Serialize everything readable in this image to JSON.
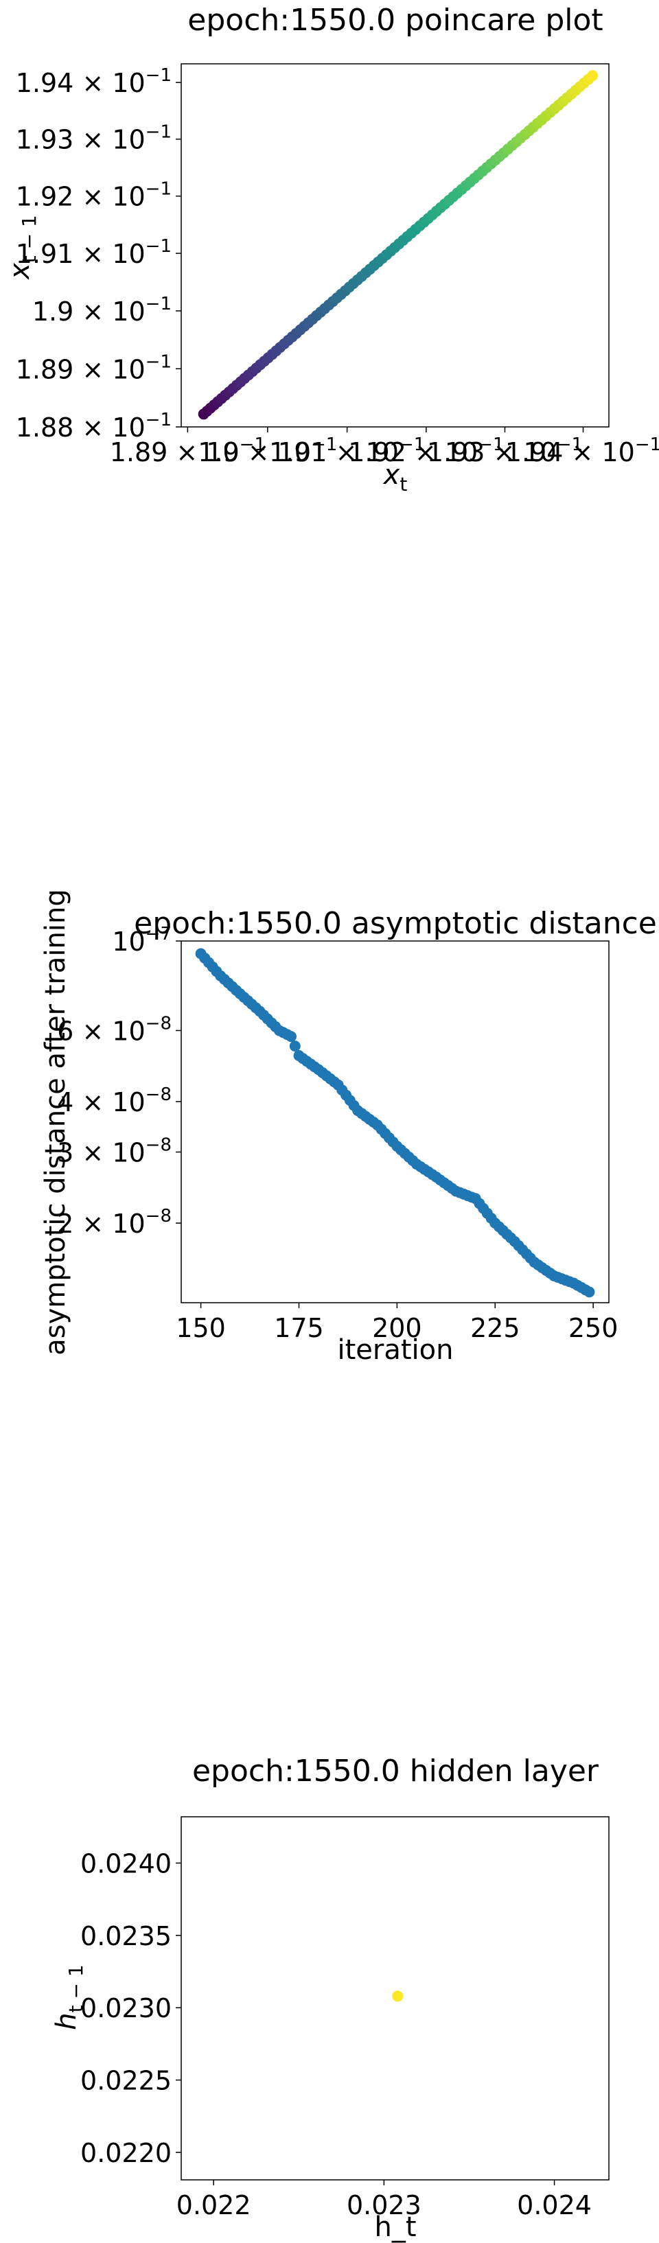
{
  "chart_data": [
    {
      "type": "scatter",
      "title": "epoch:1550.0 poincare plot",
      "xlabel": "x_t",
      "ylabel": "x_{t-1}",
      "scale": "log",
      "xlim": [
        0.18892,
        0.19433
      ],
      "ylim": [
        0.188,
        0.19433
      ],
      "x_ticks": [
        {
          "value": 0.189,
          "mant": "1.89",
          "base": "10",
          "exp": "−1"
        },
        {
          "value": 0.19,
          "mant": "1.9",
          "base": "10",
          "exp": "−1"
        },
        {
          "value": 0.191,
          "mant": "1.91",
          "base": "10",
          "exp": "−1"
        },
        {
          "value": 0.192,
          "mant": "1.92",
          "base": "10",
          "exp": "−1"
        },
        {
          "value": 0.193,
          "mant": "1.93",
          "base": "10",
          "exp": "−1"
        },
        {
          "value": 0.194,
          "mant": "1.94",
          "base": "10",
          "exp": "−1"
        }
      ],
      "y_ticks": [
        {
          "value": 0.188,
          "mant": "1.88",
          "base": "10",
          "exp": "−1"
        },
        {
          "value": 0.189,
          "mant": "1.89",
          "base": "10",
          "exp": "−1"
        },
        {
          "value": 0.19,
          "mant": "1.9",
          "base": "10",
          "exp": "−1"
        },
        {
          "value": 0.191,
          "mant": "1.91",
          "base": "10",
          "exp": "−1"
        },
        {
          "value": 0.192,
          "mant": "1.92",
          "base": "10",
          "exp": "−1"
        },
        {
          "value": 0.193,
          "mant": "1.93",
          "base": "10",
          "exp": "−1"
        },
        {
          "value": 0.194,
          "mant": "1.94",
          "base": "10",
          "exp": "−1"
        }
      ],
      "colormap": "viridis",
      "series": [
        {
          "x_range": [
            0.1892,
            0.19412
          ],
          "y_range": [
            0.18822,
            0.19412
          ],
          "count": 96,
          "color_by": "index"
        }
      ]
    },
    {
      "type": "scatter",
      "title": "epoch:1550.0 asymptotic distance",
      "xlabel": "iteration",
      "ylabel": "asymptotic distance after training",
      "yscale": "log",
      "xlim": [
        145,
        254
      ],
      "ylim": [
        1.27e-08,
        1e-07
      ],
      "x_ticks": [
        150,
        175,
        200,
        225,
        250
      ],
      "y_ticks": [
        {
          "value": 1e-07,
          "mant": "",
          "base": "10",
          "exp": "−7"
        },
        {
          "value": 6e-08,
          "mant": "6",
          "base": "10",
          "exp": "−8"
        },
        {
          "value": 4e-08,
          "mant": "4",
          "base": "10",
          "exp": "−8"
        },
        {
          "value": 3e-08,
          "mant": "3",
          "base": "10",
          "exp": "−8"
        },
        {
          "value": 2e-08,
          "mant": "2",
          "base": "10",
          "exp": "−8"
        }
      ],
      "color": "#1f77b4",
      "x": [
        150,
        155,
        160,
        165,
        170,
        173,
        175,
        180,
        185,
        190,
        195,
        200,
        205,
        210,
        215,
        220,
        225,
        230,
        235,
        240,
        245,
        249
      ],
      "y": [
        9.3e-08,
        8.2e-08,
        7.4e-08,
        6.7e-08,
        6e-08,
        5.8e-08,
        5.2e-08,
        4.8e-08,
        4.4e-08,
        3.8e-08,
        3.5e-08,
        3.1e-08,
        2.8e-08,
        2.6e-08,
        2.4e-08,
        2.3e-08,
        2e-08,
        1.8e-08,
        1.6e-08,
        1.48e-08,
        1.42e-08,
        1.35e-08
      ]
    },
    {
      "type": "scatter",
      "title": "epoch:1550.0 hidden layer",
      "xlabel": "h_t",
      "ylabel": "h_{t-1}",
      "xlim": [
        0.02181,
        0.02432
      ],
      "ylim": [
        0.02181,
        0.02432
      ],
      "x_ticks": [
        {
          "value": 0.022,
          "label": "0.022"
        },
        {
          "value": 0.023,
          "label": "0.023"
        },
        {
          "value": 0.024,
          "label": "0.024"
        }
      ],
      "y_ticks": [
        {
          "value": 0.022,
          "label": "0.0220"
        },
        {
          "value": 0.0225,
          "label": "0.0225"
        },
        {
          "value": 0.023,
          "label": "0.0230"
        },
        {
          "value": 0.0235,
          "label": "0.0235"
        },
        {
          "value": 0.024,
          "label": "0.0240"
        }
      ],
      "color": "#fde725",
      "x": [
        0.02308
      ],
      "y": [
        0.02308
      ]
    }
  ]
}
